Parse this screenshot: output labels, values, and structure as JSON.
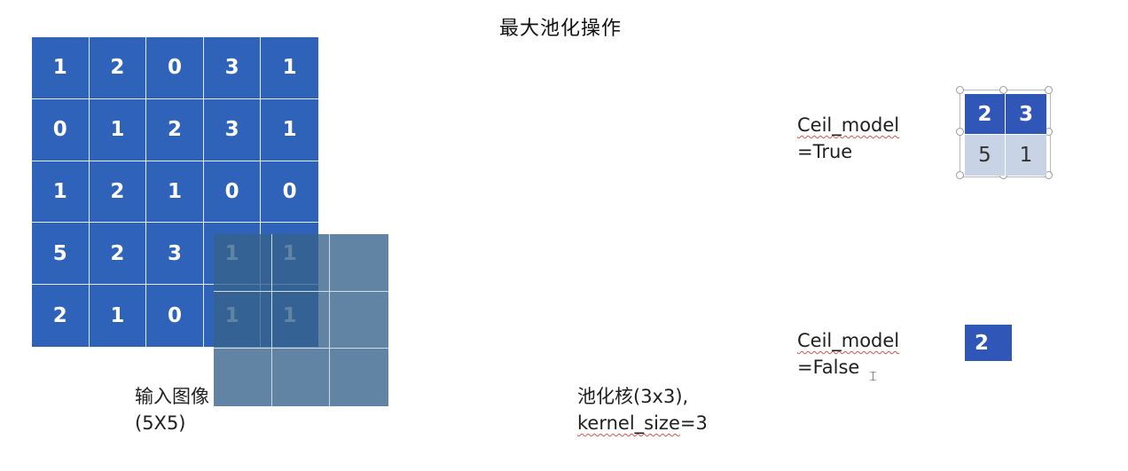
{
  "title": "最大池化操作",
  "input": {
    "matrix": [
      [
        "1",
        "2",
        "0",
        "3",
        "1"
      ],
      [
        "0",
        "1",
        "2",
        "3",
        "1"
      ],
      [
        "1",
        "2",
        "1",
        "0",
        "0"
      ],
      [
        "5",
        "2",
        "3",
        "1",
        "1"
      ],
      [
        "2",
        "1",
        "0",
        "1",
        "1"
      ]
    ],
    "label_line1": "输入图像",
    "label_line2": "(5X5)",
    "cell_color": "#2e63b9"
  },
  "kernel": {
    "label_line1": "池化核(3x3),",
    "label_line2_a": "kernel_size",
    "label_line2_b": "=3",
    "color": "#36618a"
  },
  "ceil_true": {
    "label_line1": "Ceil_model",
    "label_line2": "=True",
    "result": [
      [
        "2",
        "3"
      ],
      [
        "5",
        "1"
      ]
    ],
    "dark_color": "#3057b8",
    "light_color": "#c9d3e6"
  },
  "ceil_false": {
    "label_line1": "Ceil_model",
    "label_line2": "=False",
    "result": "2"
  }
}
